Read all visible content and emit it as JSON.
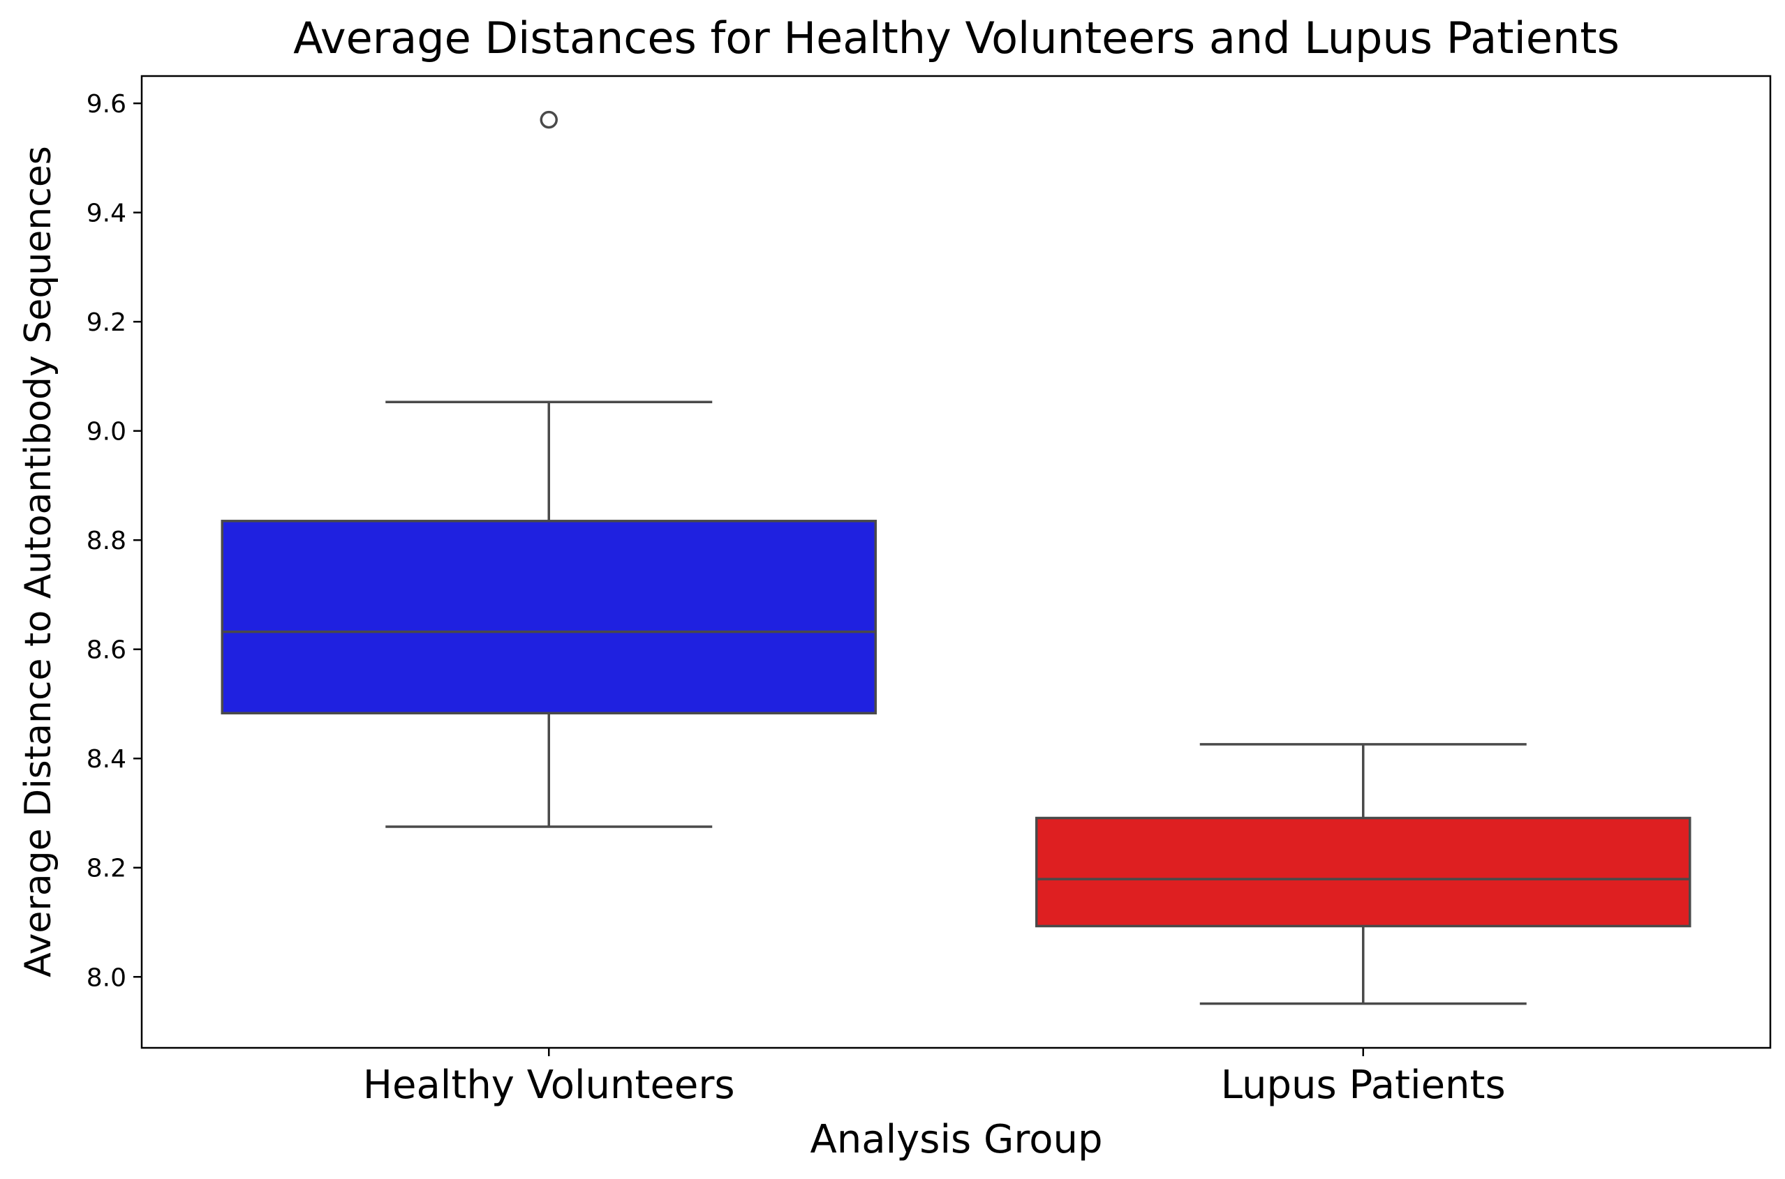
{
  "chart_data": {
    "type": "box",
    "title": "Average Distances for Healthy Volunteers and Lupus Patients",
    "xlabel": "Analysis Group",
    "ylabel": "Average Distance to Autoantibody Sequences",
    "ylim": [
      7.87,
      9.65
    ],
    "yticks": [
      8.0,
      8.2,
      8.4,
      8.6,
      8.8,
      9.0,
      9.2,
      9.4,
      9.6
    ],
    "ytick_labels": [
      "8.0",
      "8.2",
      "8.4",
      "8.6",
      "8.8",
      "9.0",
      "9.2",
      "9.4",
      "9.6"
    ],
    "categories": [
      "Healthy Volunteers",
      "Lupus Patients"
    ],
    "grid": false,
    "legend": "none",
    "series": [
      {
        "category": "Healthy Volunteers",
        "color": "#1f21e0",
        "whisker_low": 8.275,
        "q1": 8.483,
        "median": 8.632,
        "q3": 8.835,
        "whisker_high": 9.053,
        "outliers": [
          9.57
        ]
      },
      {
        "category": "Lupus Patients",
        "color": "#de1f21",
        "whisker_low": 7.951,
        "q1": 8.093,
        "median": 8.179,
        "q3": 8.291,
        "whisker_high": 8.426,
        "outliers": []
      }
    ]
  }
}
